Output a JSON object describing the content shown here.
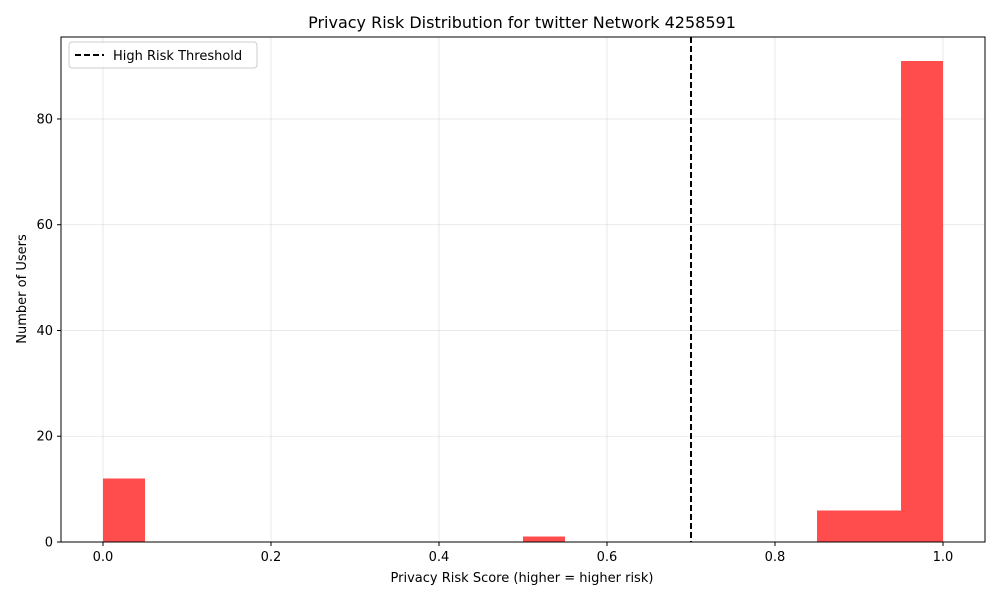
{
  "chart_data": {
    "type": "bar",
    "title": "Privacy Risk Distribution for twitter Network 4258591",
    "xlabel": "Privacy Risk Score (higher = higher risk)",
    "ylabel": "Number of Users",
    "xlim": [
      -0.05,
      1.05
    ],
    "ylim": [
      0,
      95.5
    ],
    "xticks": [
      0.0,
      0.2,
      0.4,
      0.6,
      0.8,
      1.0
    ],
    "xtick_labels": [
      "0.0",
      "0.2",
      "0.4",
      "0.6",
      "0.8",
      "1.0"
    ],
    "yticks": [
      0,
      20,
      40,
      60,
      80
    ],
    "ytick_labels": [
      "0",
      "20",
      "40",
      "60",
      "80"
    ],
    "grid": true,
    "bar_color": "#ff4d4d",
    "bins": [
      {
        "start": 0.0,
        "end": 0.05,
        "count": 12
      },
      {
        "start": 0.5,
        "end": 0.55,
        "count": 1
      },
      {
        "start": 0.85,
        "end": 0.9,
        "count": 6
      },
      {
        "start": 0.9,
        "end": 0.95,
        "count": 6
      },
      {
        "start": 0.95,
        "end": 1.0,
        "count": 91
      }
    ],
    "threshold": {
      "x": 0.7,
      "label": "High Risk Threshold",
      "style": "dashed",
      "color": "#000000"
    },
    "legend": {
      "placement": "top-left",
      "entries": [
        "High Risk Threshold"
      ]
    }
  }
}
